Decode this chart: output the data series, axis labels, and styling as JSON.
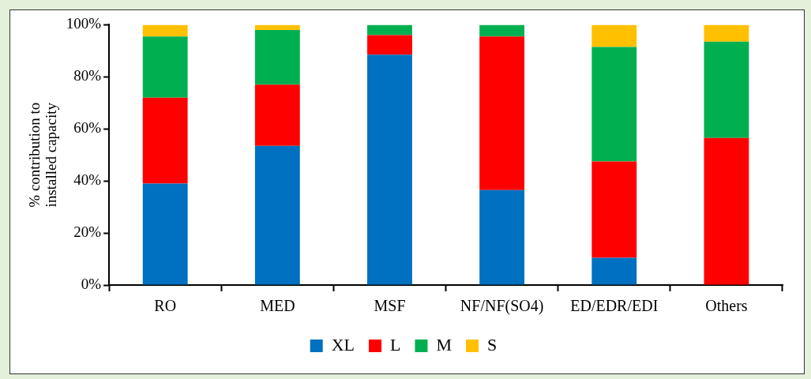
{
  "chart_data": {
    "type": "bar",
    "stacked": true,
    "ylabel": "% contribution to\ninstalled capacity",
    "categories": [
      "RO",
      "MED",
      "MSF",
      "NF/NF(SO4)",
      "ED/EDR/EDI",
      "Others"
    ],
    "series": [
      {
        "name": "XL",
        "color": "#0070c0",
        "values": [
          39,
          53.5,
          88.5,
          36.5,
          10.5,
          0
        ]
      },
      {
        "name": "L",
        "color": "#ff0000",
        "values": [
          33,
          23.5,
          7.5,
          59,
          37,
          56.5
        ]
      },
      {
        "name": "M",
        "color": "#00b050",
        "values": [
          23.5,
          21,
          4,
          4.5,
          44,
          37
        ]
      },
      {
        "name": "S",
        "color": "#ffc000",
        "values": [
          4.5,
          2,
          0,
          0,
          8.5,
          6.5
        ]
      }
    ],
    "ylim": [
      0,
      100
    ],
    "yticks": [
      {
        "value": 0,
        "label": "0%"
      },
      {
        "value": 20,
        "label": "20%"
      },
      {
        "value": 40,
        "label": "40%"
      },
      {
        "value": 60,
        "label": "60%"
      },
      {
        "value": 80,
        "label": "80%"
      },
      {
        "value": 100,
        "label": "100%"
      }
    ],
    "legend": "bottom"
  }
}
